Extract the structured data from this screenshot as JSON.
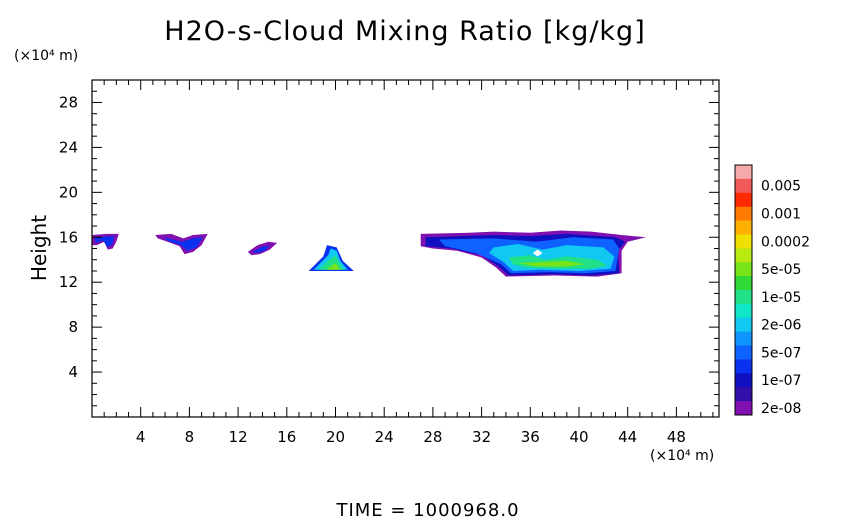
{
  "chart_data": {
    "type": "heatmap",
    "title": "H2O-s-Cloud Mixing Ratio [kg/kg]",
    "xlabel": "",
    "ylabel": "Height",
    "x_unit": "(×10⁴ m)",
    "y_unit": "(×10⁴ m)",
    "xlim": [
      0,
      51.5
    ],
    "ylim": [
      0,
      30
    ],
    "x_ticks": [
      4,
      8,
      12,
      16,
      20,
      24,
      28,
      32,
      36,
      40,
      44,
      48
    ],
    "y_ticks": [
      4,
      8,
      12,
      16,
      20,
      24,
      28
    ],
    "colorbar": {
      "labels": [
        "0.005",
        "0.001",
        "0.0002",
        "5e-05",
        "1e-05",
        "2e-06",
        "5e-07",
        "1e-07",
        "2e-08"
      ],
      "colors": [
        "#f7a8a8",
        "#f05a5a",
        "#ff2a00",
        "#ff7a00",
        "#ffb000",
        "#f0e000",
        "#b8ea10",
        "#78e418",
        "#30d838",
        "#20e088",
        "#10e6c8",
        "#10c8f0",
        "#1095ff",
        "#0e62ff",
        "#0a30f0",
        "#1010c0",
        "#3010a8",
        "#8010b0"
      ]
    },
    "cloud_regions": [
      {
        "name": "cloud-1",
        "x_range": [
          0.0,
          2.2
        ],
        "height_range": [
          14.8,
          16.3
        ],
        "max_level": "1e-07"
      },
      {
        "name": "cloud-2",
        "x_range": [
          5.2,
          9.5
        ],
        "height_range": [
          14.5,
          16.3
        ],
        "max_level": "1e-07"
      },
      {
        "name": "cloud-3",
        "x_range": [
          12.8,
          15.2
        ],
        "height_range": [
          14.4,
          15.6
        ],
        "max_level": "1e-07"
      },
      {
        "name": "cloud-4",
        "x_range": [
          17.8,
          21.5
        ],
        "height_range": [
          13.0,
          15.3
        ],
        "max_level": "5e-05"
      },
      {
        "name": "cloud-5",
        "x_range": [
          27.0,
          45.5
        ],
        "height_range": [
          12.5,
          16.5
        ],
        "max_level": "5e-05"
      }
    ]
  },
  "footer": {
    "time_label": "TIME = 1000968.0"
  }
}
